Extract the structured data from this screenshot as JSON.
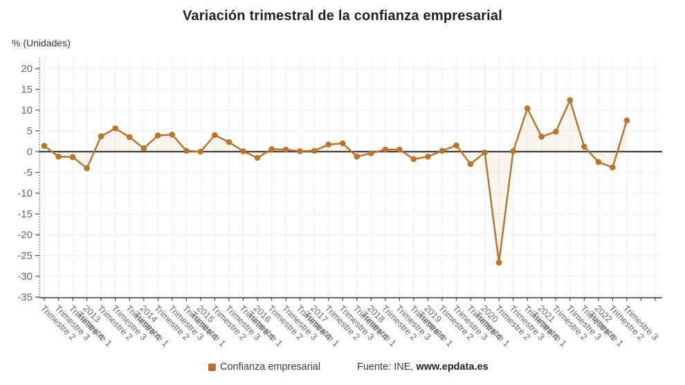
{
  "title": "Variación trimestral de la confianza empresarial",
  "y_axis_title": "% (Unidades)",
  "legend": {
    "label": "Confianza empresarial",
    "color": "#b9752d"
  },
  "source": {
    "prefix": "Fuente: INE, ",
    "bold": "www.epdata.es"
  },
  "chart_data": {
    "type": "line",
    "title": "Variación trimestral de la confianza empresarial",
    "ylabel": "% (Unidades)",
    "legend_entries": [
      "Confianza empresarial"
    ],
    "legend_position": "bottom",
    "grid": true,
    "ylim": [
      -35.2,
      22.5
    ],
    "yticks": [
      20,
      15,
      10,
      5,
      0,
      -5,
      -10,
      -15,
      -20,
      -25,
      -30,
      -35
    ],
    "categories": [
      [
        "Trimestre 2"
      ],
      [
        "Trimestre 3"
      ],
      [
        "Trimestre 4"
      ],
      [
        "2013",
        "Trimestre 1"
      ],
      [
        "Trimestre 2"
      ],
      [
        "Trimestre 3"
      ],
      [
        "Trimestre 4"
      ],
      [
        "2014",
        "Trimestre 1"
      ],
      [
        "Trimestre 2"
      ],
      [
        "Trimestre 3"
      ],
      [
        "Trimestre 4"
      ],
      [
        "2015",
        "Trimestre 1"
      ],
      [
        "Trimestre 2"
      ],
      [
        "Trimestre 3"
      ],
      [
        "Trimestre 4"
      ],
      [
        "2016",
        "Trimestre 1"
      ],
      [
        "Trimestre 2"
      ],
      [
        "Trimestre 3"
      ],
      [
        "Trimestre 4"
      ],
      [
        "2017",
        "Trimestre 1"
      ],
      [
        "Trimestre 2"
      ],
      [
        "Trimestre 3"
      ],
      [
        "Trimestre 4"
      ],
      [
        "2018",
        "Trimestre 1"
      ],
      [
        "Trimestre 2"
      ],
      [
        "Trimestre 3"
      ],
      [
        "Trimestre 4"
      ],
      [
        "2019",
        "Trimestre 1"
      ],
      [
        "Trimestre 2"
      ],
      [
        "Trimestre 3"
      ],
      [
        "Trimestre 4"
      ],
      [
        "2020",
        "Trimestre 1"
      ],
      [
        "Trimestre 2"
      ],
      [
        "Trimestre 3"
      ],
      [
        "Trimestre 4"
      ],
      [
        "2021",
        "Trimestre 1"
      ],
      [
        "Trimestre 2"
      ],
      [
        "Trimestre 3"
      ],
      [
        "Trimestre 4"
      ],
      [
        "2022",
        "Trimestre 1"
      ],
      [
        "Trimestre 2"
      ],
      [
        "Trimestre 3"
      ]
    ],
    "series": [
      {
        "name": "Confianza empresarial",
        "values": [
          1.4,
          -1.2,
          -1.3,
          -4.0,
          3.7,
          5.6,
          3.5,
          0.8,
          3.9,
          4.1,
          0.2,
          0.0,
          4.0,
          2.3,
          0.1,
          -1.5,
          0.6,
          0.5,
          0.1,
          0.2,
          1.7,
          2.0,
          -1.2,
          -0.4,
          0.5,
          0.5,
          -1.8,
          -1.2,
          0.2,
          1.5,
          -3.0,
          -0.2,
          -26.7,
          0.1,
          10.4,
          3.6,
          4.8,
          12.4,
          1.2,
          -2.5,
          -3.8,
          7.5
        ]
      }
    ],
    "colors": {
      "series": "#b9752d",
      "area_fill": "rgba(185,117,45,0.08)",
      "grid": "#d4d4d4",
      "zero_line": "#3d3d3d",
      "axis": "#444444",
      "axis_text": "#666666",
      "title_text": "#1e1e1e"
    }
  }
}
